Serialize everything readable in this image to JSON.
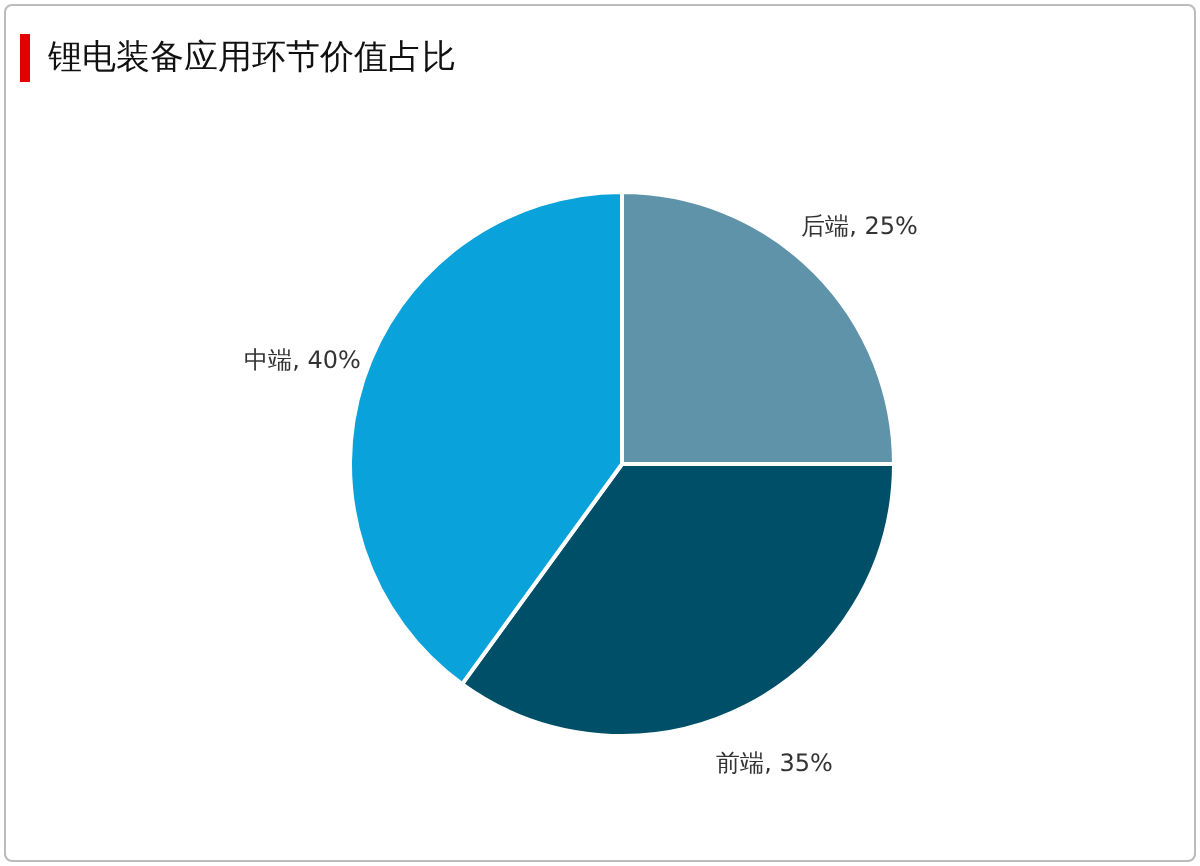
{
  "chart_data": {
    "type": "pie",
    "title": "锂电装备应用环节价值占比",
    "categories": [
      "后端",
      "前端",
      "中端"
    ],
    "values": [
      25,
      35,
      40
    ],
    "value_labels": [
      "25%",
      "35%",
      "40%"
    ],
    "colors": [
      "#5e93a9",
      "#004f69",
      "#0aa2da"
    ]
  }
}
